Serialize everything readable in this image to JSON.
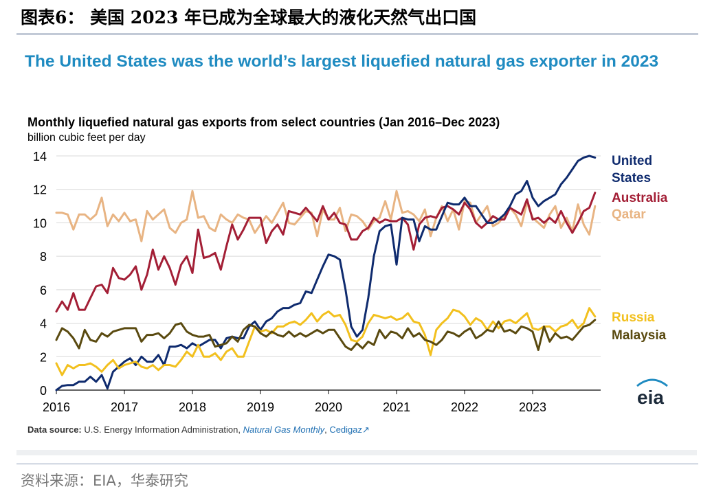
{
  "report": {
    "figure_title": "图表6： 美国 2023 年已成为全球最大的液化天然气出口国",
    "footer_source": "资料来源：EIA，华泰研究"
  },
  "panel": {
    "headline": "The United States was the world’s largest liquefied natural gas exporter in 2023",
    "source_label": "Data source:",
    "source_text": " U.S. Energy Information Administration, ",
    "source_publication": "Natural Gas Monthly",
    "source_sep": ", ",
    "source_link": "Cedigaz",
    "logo_text": "eia"
  },
  "chart_data": {
    "type": "line",
    "title": "Monthly liquefied natural gas exports from select countries (Jan 2016–Dec 2023)",
    "units": "billion cubic feet per day",
    "ylim": [
      0,
      14
    ],
    "yticks": [
      0,
      2,
      4,
      6,
      8,
      10,
      12,
      14
    ],
    "xlim": [
      2016,
      2024
    ],
    "xticks": [
      "2016",
      "2017",
      "2018",
      "2019",
      "2020",
      "2021",
      "2022",
      "2023"
    ],
    "grid": true,
    "legend": "right, inline at line ends",
    "series": [
      {
        "name": "Qatar",
        "label": "Qatar",
        "color": "#e8b483",
        "values": [
          10.6,
          10.6,
          10.5,
          9.6,
          10.5,
          10.5,
          10.2,
          10.5,
          11.5,
          9.8,
          10.5,
          10.1,
          10.6,
          10.1,
          10.2,
          8.9,
          10.7,
          10.2,
          10.5,
          10.8,
          9.7,
          9.4,
          10.0,
          10.2,
          11.9,
          10.3,
          10.4,
          9.7,
          9.5,
          10.5,
          10.2,
          10.0,
          10.5,
          10.3,
          10.2,
          9.4,
          9.9,
          10.4,
          10.0,
          10.6,
          11.2,
          10.0,
          9.9,
          10.3,
          10.7,
          10.6,
          9.2,
          10.8,
          10.2,
          10.2,
          10.9,
          9.5,
          10.5,
          10.4,
          10.1,
          9.6,
          10.1,
          10.3,
          11.3,
          10.2,
          11.9,
          10.6,
          10.7,
          10.5,
          10.1,
          10.8,
          9.2,
          10.3,
          11.0,
          10.1,
          10.8,
          9.6,
          11.3,
          11.2,
          10.0,
          10.5,
          11.0,
          9.8,
          10.0,
          10.4,
          10.9,
          10.5,
          9.8,
          11.2,
          10.3,
          10.0,
          9.7,
          10.5,
          11.0,
          9.7,
          10.3,
          9.5,
          11.1,
          9.9,
          9.3,
          11.0
        ]
      },
      {
        "name": "Australia",
        "label": "Australia",
        "color": "#a31f36",
        "values": [
          4.7,
          5.3,
          4.8,
          5.8,
          4.8,
          4.8,
          5.5,
          6.2,
          6.3,
          5.8,
          7.3,
          6.7,
          6.6,
          6.9,
          7.4,
          6.0,
          6.9,
          8.4,
          7.2,
          8.0,
          7.3,
          6.3,
          7.5,
          8.0,
          7.0,
          9.6,
          7.9,
          8.0,
          8.2,
          7.2,
          8.6,
          9.9,
          9.0,
          9.6,
          10.3,
          10.3,
          10.3,
          8.8,
          9.5,
          9.9,
          9.3,
          10.7,
          10.6,
          10.5,
          10.9,
          10.5,
          10.1,
          11.0,
          10.2,
          10.6,
          10.0,
          9.9,
          9.0,
          9.0,
          9.5,
          9.7,
          10.3,
          10.0,
          10.2,
          10.1,
          10.1,
          10.3,
          9.9,
          8.4,
          9.9,
          10.3,
          10.4,
          10.3,
          10.9,
          11.0,
          10.8,
          10.5,
          11.2,
          10.8,
          10.0,
          9.7,
          10.0,
          10.4,
          10.2,
          10.2,
          10.9,
          10.7,
          10.5,
          11.4,
          10.2,
          10.3,
          10.0,
          10.3,
          10.0,
          10.7,
          10.0,
          9.4,
          10.0,
          10.7,
          10.9,
          11.8
        ]
      },
      {
        "name": "United States",
        "label": "United States",
        "color": "#0f2b6e",
        "values": [
          0.0,
          0.25,
          0.3,
          0.3,
          0.5,
          0.5,
          0.8,
          0.5,
          0.9,
          0.1,
          1.1,
          1.4,
          1.7,
          1.9,
          1.5,
          2.0,
          1.7,
          1.7,
          2.1,
          1.5,
          2.6,
          2.6,
          2.7,
          2.5,
          2.8,
          2.6,
          2.8,
          3.0,
          3.0,
          2.5,
          3.1,
          3.2,
          3.1,
          3.1,
          3.8,
          4.1,
          3.6,
          4.1,
          4.3,
          4.7,
          4.9,
          4.9,
          5.1,
          5.2,
          5.9,
          5.8,
          6.6,
          7.4,
          8.1,
          8.0,
          7.8,
          6.0,
          3.8,
          3.2,
          3.6,
          5.5,
          8.0,
          9.5,
          9.8,
          9.9,
          7.5,
          10.3,
          10.2,
          10.2,
          8.9,
          9.8,
          9.6,
          9.6,
          10.4,
          11.2,
          11.1,
          11.1,
          11.5,
          11.0,
          11.0,
          10.5,
          10.0,
          10.0,
          10.2,
          10.5,
          11.0,
          11.7,
          11.9,
          12.5,
          11.5,
          11.0,
          11.3,
          11.5,
          11.7,
          12.3,
          12.7,
          13.2,
          13.7,
          13.9,
          14.0,
          13.9
        ]
      },
      {
        "name": "Russia",
        "label": "Russia",
        "color": "#f2c01e",
        "values": [
          1.6,
          0.9,
          1.5,
          1.3,
          1.5,
          1.5,
          1.6,
          1.4,
          1.1,
          1.5,
          1.8,
          1.3,
          1.5,
          1.6,
          1.7,
          1.4,
          1.3,
          1.5,
          1.2,
          1.5,
          1.5,
          1.4,
          1.8,
          2.3,
          2.0,
          2.7,
          2.0,
          2.0,
          2.2,
          1.8,
          2.3,
          2.5,
          2.0,
          2.0,
          2.9,
          3.8,
          3.5,
          3.6,
          3.4,
          3.8,
          3.8,
          4.0,
          4.1,
          3.9,
          4.2,
          4.6,
          4.1,
          4.5,
          4.7,
          4.4,
          4.5,
          3.9,
          3.0,
          2.9,
          3.2,
          4.0,
          4.5,
          4.4,
          4.3,
          4.4,
          4.2,
          4.3,
          4.6,
          4.1,
          4.0,
          3.3,
          2.1,
          3.6,
          4.0,
          4.3,
          4.8,
          4.7,
          4.4,
          3.9,
          4.3,
          4.1,
          3.6,
          4.1,
          3.7,
          4.1,
          4.2,
          4.0,
          4.3,
          4.6,
          3.7,
          3.6,
          3.8,
          3.8,
          3.5,
          3.8,
          3.9,
          4.2,
          3.7,
          4.0,
          4.9,
          4.4
        ]
      },
      {
        "name": "Malaysia",
        "label": "Malaysia",
        "color": "#5a4a10",
        "values": [
          3.0,
          3.7,
          3.5,
          3.1,
          2.5,
          3.6,
          3.0,
          2.9,
          3.4,
          3.2,
          3.5,
          3.6,
          3.7,
          3.7,
          3.7,
          2.9,
          3.3,
          3.3,
          3.4,
          3.1,
          3.4,
          3.9,
          4.0,
          3.5,
          3.3,
          3.2,
          3.2,
          3.3,
          2.6,
          2.7,
          2.8,
          3.2,
          2.9,
          3.6,
          3.9,
          3.8,
          3.4,
          3.2,
          3.5,
          3.3,
          3.2,
          3.5,
          3.2,
          3.4,
          3.2,
          3.4,
          3.6,
          3.4,
          3.6,
          3.6,
          3.1,
          2.6,
          2.4,
          2.8,
          2.5,
          2.9,
          2.7,
          3.6,
          3.1,
          3.5,
          3.4,
          3.1,
          3.7,
          3.2,
          3.4,
          3.0,
          2.9,
          2.7,
          3.0,
          3.5,
          3.4,
          3.2,
          3.5,
          3.7,
          3.1,
          3.3,
          3.6,
          3.5,
          4.1,
          3.5,
          3.6,
          3.4,
          3.8,
          3.7,
          3.5,
          2.4,
          3.8,
          2.9,
          3.4,
          3.1,
          3.2,
          3.0,
          3.4,
          3.8,
          3.9,
          4.2
        ]
      }
    ]
  }
}
